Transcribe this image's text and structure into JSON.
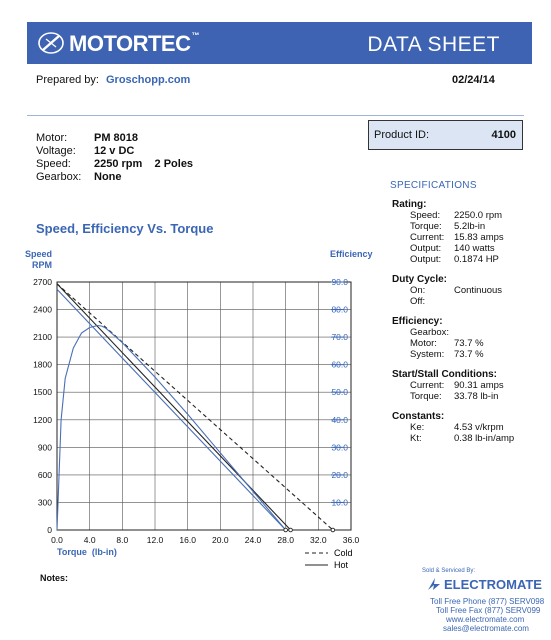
{
  "header": {
    "brand": "MOTORTEC",
    "brand_tm": "™",
    "doc_title": "DATA SHEET"
  },
  "prepared": {
    "label": "Prepared by:",
    "by": "Groschopp.com",
    "date": "02/24/14"
  },
  "motor": [
    {
      "key": "Motor:",
      "value": "PM  8018"
    },
    {
      "key": "Voltage:",
      "value": "12 v DC"
    },
    {
      "key": "Speed:",
      "value": "2250 rpm    2 Poles"
    },
    {
      "key": "Gearbox:",
      "value": "None"
    }
  ],
  "product": {
    "label": "Product ID:",
    "value": "4100"
  },
  "specs": {
    "title": "SPECIFICATIONS",
    "rating": {
      "heading": "Rating:",
      "rows": [
        {
          "k": "Speed:",
          "v": "2250.0 rpm"
        },
        {
          "k": "Torque:",
          "v": "5.2lb-in"
        },
        {
          "k": "Current:",
          "v": "15.83 amps"
        },
        {
          "k": "Output:",
          "v": "140 watts"
        },
        {
          "k": "Output:",
          "v": "0.1874 HP"
        }
      ]
    },
    "duty": {
      "heading": "Duty Cycle:",
      "rows": [
        {
          "k": "On:",
          "v": "Continuous"
        },
        {
          "k": "Off:",
          "v": ""
        }
      ]
    },
    "efficiency": {
      "heading": "Efficiency:",
      "rows": [
        {
          "k": "Gearbox:",
          "v": ""
        },
        {
          "k": "Motor:",
          "v": "73.7 %"
        },
        {
          "k": "System:",
          "v": "73.7 %"
        }
      ]
    },
    "stall": {
      "heading": "Start/Stall Conditions:",
      "rows": [
        {
          "k": "Current:",
          "v": "90.31 amps"
        },
        {
          "k": "Torque:",
          "v": "33.78 lb-in"
        }
      ]
    },
    "constants": {
      "heading": "Constants:",
      "rows": [
        {
          "k": "Ke:",
          "v": "4.53 v/krpm"
        },
        {
          "k": "Kt:",
          "v": "0.38 lb-in/amp"
        }
      ]
    }
  },
  "notes_label": "Notes:",
  "seller": {
    "sold_by": "Sold & Serviced By:",
    "name": "ELECTROMATE",
    "phone": "Toll Free Phone  (877) SERV098",
    "fax": "Toll Free Fax  (877) SERV099",
    "web": "www.electromate.com",
    "email": "sales@electromate.com"
  },
  "colors": {
    "banner": "#3f63b3",
    "accent": "#3a66b4",
    "curve_blue": "#4a6fb5",
    "product_box": "#dce5f4"
  },
  "chart_data": {
    "type": "line",
    "title": "Speed, Efficiency Vs. Torque",
    "xlabel": "Torque  (lb-in)",
    "ylabel": "Speed RPM",
    "ylabel_line1": "Speed",
    "ylabel_line2": "RPM",
    "y2label": "Efficiency",
    "xlim": [
      0,
      36
    ],
    "ylim": [
      0,
      2700
    ],
    "y2lim": [
      0,
      90
    ],
    "xticks": [
      "0.0",
      "4.0",
      "8.0",
      "12.0",
      "16.0",
      "20.0",
      "24.0",
      "28.0",
      "32.0",
      "36.0"
    ],
    "yticks": [
      "0",
      "300",
      "600",
      "900",
      "1200",
      "1500",
      "1800",
      "2100",
      "2400",
      "2700"
    ],
    "y2ticks": [
      "10.0",
      "20.0",
      "30.0",
      "40.0",
      "50.0",
      "60.0",
      "70.0",
      "80.0",
      "90.0"
    ],
    "grid": true,
    "legend": [
      {
        "name": "Cold",
        "style": "dashed"
      },
      {
        "name": "Hot",
        "style": "solid"
      }
    ],
    "series": [
      {
        "name": "Cold",
        "axis": "speed",
        "style": "dashed",
        "color": "#222222",
        "x": [
          0,
          33.78
        ],
        "y": [
          2680,
          0
        ]
      },
      {
        "name": "Hot",
        "axis": "speed",
        "style": "solid",
        "color": "#222222",
        "x": [
          0,
          28.6
        ],
        "y": [
          2680,
          0
        ]
      },
      {
        "axis": "speed",
        "style": "solid",
        "color": "#4a6fb5",
        "x": [
          0,
          28.0
        ],
        "y": [
          2620,
          0
        ]
      },
      {
        "axis": "efficiency",
        "style": "solid",
        "color": "#4a6fb5",
        "x": [
          0,
          0.5,
          1.0,
          2.0,
          3.0,
          4.0,
          5.0,
          5.5,
          6.0,
          8.0,
          12.0,
          16.0,
          20.0,
          24.0,
          28.0
        ],
        "y": [
          0,
          40.0,
          55.0,
          66.0,
          71.5,
          73.5,
          74.2,
          74.0,
          73.2,
          68.0,
          55.5,
          42.0,
          28.0,
          14.0,
          0
        ]
      }
    ]
  }
}
